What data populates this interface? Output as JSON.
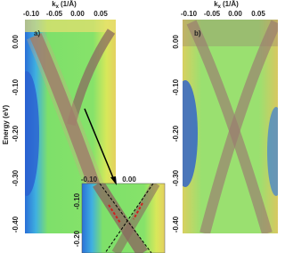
{
  "figure": {
    "x_label": {
      "symbol": "k",
      "subscript": "x",
      "unit": "(1/Å)"
    },
    "y_label": "Energy (eV)",
    "panels": [
      {
        "label": "a)",
        "xticks": [
          "-0.10",
          "-0.05",
          "0.00",
          "0.05"
        ],
        "yticks": [
          "0.00",
          "-0.10",
          "-0.20",
          "-0.30",
          "-0.40"
        ]
      },
      {
        "label": "b)",
        "xticks": [
          "-0.10",
          "-0.05",
          "0.00",
          "0.05"
        ],
        "yticks": [
          "0.00",
          "-0.10",
          "-0.20",
          "-0.30",
          "-0.40"
        ]
      }
    ],
    "inset": {
      "xticks": [
        "-0.10",
        "0.00"
      ],
      "yticks": [
        "-0.10",
        "-0.20"
      ]
    }
  }
}
